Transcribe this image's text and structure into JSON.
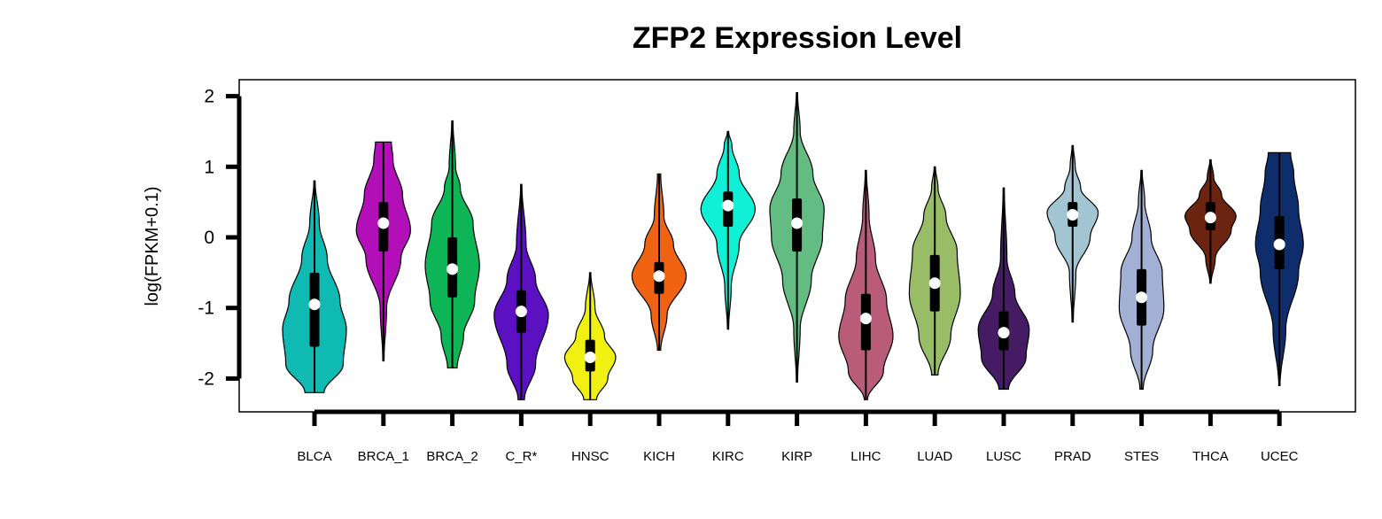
{
  "chart_data": {
    "type": "violin",
    "title": "ZFP2 Expression Level",
    "ylabel": "log(FPKM+0.1)",
    "xlabel": "",
    "ylim": [
      -2.5,
      2.25
    ],
    "yticks": [
      -2,
      -1,
      0,
      1,
      2
    ],
    "grid": false,
    "categories": [
      "BLCA",
      "BRCA_1",
      "BRCA_2",
      "C_R*",
      "HNSC",
      "KICH",
      "KIRC",
      "KIRP",
      "LIHC",
      "LUAD",
      "LUSC",
      "PRAD",
      "STES",
      "THCA",
      "UCEC"
    ],
    "series": [
      {
        "category": "BLCA",
        "color": "#0fbab2",
        "min": -2.2,
        "max": 0.8,
        "whisker_low": -2.2,
        "whisker_high": 0.8,
        "q1": -1.55,
        "q3": -0.5,
        "median": -0.95,
        "widths": [
          [
            -2.2,
            0.3
          ],
          [
            -1.8,
            0.9
          ],
          [
            -1.3,
            1.0
          ],
          [
            -0.9,
            0.8
          ],
          [
            -0.3,
            0.4
          ],
          [
            0.2,
            0.15
          ],
          [
            0.8,
            0.02
          ]
        ]
      },
      {
        "category": "BRCA_1",
        "color": "#b20fb8",
        "min": -1.75,
        "max": 1.35,
        "whisker_low": -1.75,
        "whisker_high": 1.35,
        "q1": -0.2,
        "q3": 0.5,
        "median": 0.2,
        "widths": [
          [
            -1.75,
            0.02
          ],
          [
            -1.0,
            0.1
          ],
          [
            -0.3,
            0.55
          ],
          [
            0.1,
            0.85
          ],
          [
            0.6,
            0.6
          ],
          [
            1.1,
            0.3
          ],
          [
            1.35,
            0.25
          ]
        ]
      },
      {
        "category": "BRCA_2",
        "color": "#0db556",
        "min": -1.85,
        "max": 1.65,
        "whisker_low": -1.85,
        "whisker_high": 1.65,
        "q1": -0.85,
        "q3": 0.0,
        "median": -0.45,
        "widths": [
          [
            -1.85,
            0.15
          ],
          [
            -1.4,
            0.35
          ],
          [
            -0.9,
            0.7
          ],
          [
            -0.4,
            0.85
          ],
          [
            0.2,
            0.65
          ],
          [
            0.7,
            0.25
          ],
          [
            1.0,
            0.1
          ],
          [
            1.65,
            0.02
          ]
        ]
      },
      {
        "category": "C_R*",
        "color": "#5b10c2",
        "min": -2.3,
        "max": 0.75,
        "whisker_low": -2.3,
        "whisker_high": 0.75,
        "q1": -1.35,
        "q3": -0.75,
        "median": -1.05,
        "widths": [
          [
            -2.3,
            0.1
          ],
          [
            -1.8,
            0.45
          ],
          [
            -1.1,
            0.85
          ],
          [
            -0.6,
            0.45
          ],
          [
            -0.1,
            0.15
          ],
          [
            0.75,
            0.02
          ]
        ]
      },
      {
        "category": "HNSC",
        "color": "#f0f012",
        "min": -2.3,
        "max": -0.5,
        "whisker_low": -2.3,
        "whisker_high": -0.5,
        "q1": -1.9,
        "q3": -1.45,
        "median": -1.7,
        "widths": [
          [
            -2.3,
            0.2
          ],
          [
            -2.0,
            0.55
          ],
          [
            -1.7,
            0.8
          ],
          [
            -1.4,
            0.45
          ],
          [
            -1.0,
            0.15
          ],
          [
            -0.5,
            0.02
          ]
        ]
      },
      {
        "category": "KICH",
        "color": "#f06312",
        "min": -1.6,
        "max": 0.9,
        "whisker_low": -1.6,
        "whisker_high": 0.9,
        "q1": -0.8,
        "q3": -0.35,
        "median": -0.55,
        "widths": [
          [
            -1.6,
            0.05
          ],
          [
            -1.1,
            0.25
          ],
          [
            -0.55,
            0.85
          ],
          [
            -0.1,
            0.45
          ],
          [
            0.3,
            0.15
          ],
          [
            0.9,
            0.05
          ]
        ]
      },
      {
        "category": "KIRC",
        "color": "#10f0d6",
        "min": -1.3,
        "max": 1.5,
        "whisker_low": -1.3,
        "whisker_high": 1.5,
        "q1": 0.15,
        "q3": 0.65,
        "median": 0.45,
        "widths": [
          [
            -1.3,
            0.02
          ],
          [
            -0.7,
            0.1
          ],
          [
            -0.1,
            0.35
          ],
          [
            0.4,
            0.85
          ],
          [
            0.9,
            0.35
          ],
          [
            1.3,
            0.12
          ],
          [
            1.5,
            0.02
          ]
        ]
      },
      {
        "category": "KIRP",
        "color": "#63bd82",
        "min": -2.05,
        "max": 2.05,
        "whisker_low": -2.05,
        "whisker_high": 2.05,
        "q1": -0.2,
        "q3": 0.55,
        "median": 0.2,
        "widths": [
          [
            -2.05,
            0.02
          ],
          [
            -1.3,
            0.1
          ],
          [
            -0.6,
            0.45
          ],
          [
            0.0,
            0.8
          ],
          [
            0.4,
            0.85
          ],
          [
            0.9,
            0.5
          ],
          [
            1.5,
            0.1
          ],
          [
            2.05,
            0.02
          ]
        ]
      },
      {
        "category": "LIHC",
        "color": "#b85c7a",
        "min": -2.3,
        "max": 0.95,
        "whisker_low": -2.3,
        "whisker_high": 0.95,
        "q1": -1.6,
        "q3": -0.8,
        "median": -1.15,
        "widths": [
          [
            -2.3,
            0.05
          ],
          [
            -1.9,
            0.55
          ],
          [
            -1.4,
            0.85
          ],
          [
            -0.9,
            0.65
          ],
          [
            -0.3,
            0.3
          ],
          [
            0.3,
            0.1
          ],
          [
            0.95,
            0.02
          ]
        ]
      },
      {
        "category": "LUAD",
        "color": "#99bd66",
        "min": -1.95,
        "max": 1.0,
        "whisker_low": -1.95,
        "whisker_high": 1.0,
        "q1": -1.05,
        "q3": -0.25,
        "median": -0.65,
        "widths": [
          [
            -1.95,
            0.1
          ],
          [
            -1.4,
            0.5
          ],
          [
            -0.8,
            0.8
          ],
          [
            -0.2,
            0.7
          ],
          [
            0.3,
            0.35
          ],
          [
            0.7,
            0.1
          ],
          [
            1.0,
            0.02
          ]
        ]
      },
      {
        "category": "LUSC",
        "color": "#451b63",
        "min": -2.15,
        "max": 0.7,
        "whisker_low": -2.15,
        "whisker_high": 0.7,
        "q1": -1.6,
        "q3": -1.05,
        "median": -1.35,
        "widths": [
          [
            -2.15,
            0.15
          ],
          [
            -1.7,
            0.7
          ],
          [
            -1.3,
            0.8
          ],
          [
            -0.8,
            0.35
          ],
          [
            -0.3,
            0.1
          ],
          [
            0.7,
            0.02
          ]
        ]
      },
      {
        "category": "PRAD",
        "color": "#a3c4d1",
        "min": -1.2,
        "max": 1.3,
        "whisker_low": -1.2,
        "whisker_high": 1.3,
        "q1": 0.15,
        "q3": 0.5,
        "median": 0.32,
        "widths": [
          [
            -1.2,
            0.02
          ],
          [
            -0.5,
            0.1
          ],
          [
            0.0,
            0.55
          ],
          [
            0.35,
            0.8
          ],
          [
            0.7,
            0.25
          ],
          [
            1.0,
            0.08
          ],
          [
            1.3,
            0.02
          ]
        ]
      },
      {
        "category": "STES",
        "color": "#a3b0d6",
        "min": -2.15,
        "max": 0.95,
        "whisker_low": -2.15,
        "whisker_high": 0.95,
        "q1": -1.25,
        "q3": -0.45,
        "median": -0.85,
        "widths": [
          [
            -2.15,
            0.05
          ],
          [
            -1.6,
            0.35
          ],
          [
            -1.0,
            0.7
          ],
          [
            -0.5,
            0.65
          ],
          [
            0.0,
            0.3
          ],
          [
            0.5,
            0.1
          ],
          [
            0.95,
            0.02
          ]
        ]
      },
      {
        "category": "THCA",
        "color": "#6b2410",
        "min": -0.65,
        "max": 1.1,
        "whisker_low": -0.65,
        "whisker_high": 1.1,
        "q1": 0.1,
        "q3": 0.5,
        "median": 0.28,
        "widths": [
          [
            -0.65,
            0.02
          ],
          [
            -0.3,
            0.15
          ],
          [
            0.1,
            0.65
          ],
          [
            0.3,
            0.8
          ],
          [
            0.6,
            0.35
          ],
          [
            0.85,
            0.1
          ],
          [
            1.1,
            0.02
          ]
        ]
      },
      {
        "category": "UCEC",
        "color": "#0f2c6b",
        "min": -2.1,
        "max": 1.2,
        "whisker_low": -2.1,
        "whisker_high": 1.2,
        "q1": -0.45,
        "q3": 0.3,
        "median": -0.1,
        "widths": [
          [
            -2.1,
            0.02
          ],
          [
            -1.3,
            0.2
          ],
          [
            -0.5,
            0.6
          ],
          [
            -0.1,
            0.75
          ],
          [
            0.4,
            0.6
          ],
          [
            0.9,
            0.45
          ],
          [
            1.2,
            0.35
          ]
        ]
      }
    ]
  }
}
